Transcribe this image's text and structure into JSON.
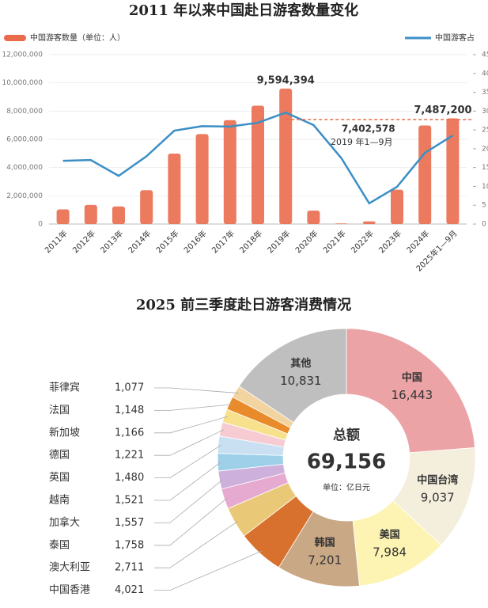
{
  "chart_data": [
    {
      "type": "bar",
      "title": "2011 年以来中国赴日游客数量变化",
      "categories": [
        "2011年",
        "2012年",
        "2013年",
        "2014年",
        "2015年",
        "2016年",
        "2017年",
        "2018年",
        "2019年",
        "2020年",
        "2021年",
        "2022年",
        "2023年",
        "2024年",
        "2025年1—9月"
      ],
      "series": [
        {
          "name": "中国游客数量（单位：人）",
          "color": "#e96b4c",
          "values": [
            1040000,
            1350000,
            1250000,
            2400000,
            4990000,
            6370000,
            7360000,
            8380000,
            9594394,
            950000,
            40000,
            190000,
            2430000,
            6980000,
            7487200
          ],
          "value_labels": [
            null,
            null,
            null,
            null,
            null,
            null,
            null,
            null,
            "9,594,394",
            null,
            null,
            null,
            null,
            null,
            "7,487,200"
          ]
        },
        {
          "name": "中国游客占",
          "type": "line",
          "axis": "y2",
          "color": "#3b8fc6",
          "values": [
            16.8,
            17,
            12.8,
            18,
            24.8,
            26,
            25.9,
            26.9,
            29.6,
            26.3,
            17.5,
            5.5,
            9.9,
            18.9,
            23.5
          ]
        }
      ],
      "ylim": [
        0,
        12000000
      ],
      "yticks": [
        0,
        {
          "value": 2000000,
          "label": "2,000,000"
        },
        {
          "value": 4000000,
          "label": "4,000,000"
        },
        {
          "value": 6000000,
          "label": "6,000,000"
        },
        {
          "value": 8000000,
          "label": "8,000,000"
        },
        {
          "value": 10000000,
          "label": "10,000,000"
        },
        {
          "value": 12000000,
          "label": "12,000,000"
        }
      ],
      "y2lim": [
        0,
        45
      ],
      "y2ticks": [
        0,
        5,
        10,
        15,
        20,
        25,
        30,
        35,
        40,
        45
      ],
      "grid": true,
      "annotations": [
        {
          "text": "7,402,578",
          "value": 7402578
        },
        {
          "text": "2019 年1—9月"
        }
      ]
    },
    {
      "type": "pie",
      "title": "2025 前三季度赴日游客消费情况",
      "categories": [
        "中国",
        "中国台湾",
        "美国",
        "韩国",
        "中国香港",
        "澳大利亚",
        "泰国",
        "加拿大",
        "越南",
        "英国",
        "德国",
        "新加坡",
        "法国",
        "菲律宾",
        "其他"
      ],
      "values": [
        16443,
        9037,
        7984,
        7201,
        4021,
        2711,
        1758,
        1557,
        1521,
        1480,
        1221,
        1166,
        1148,
        1077,
        10831
      ],
      "value_labels": [
        "16,443",
        "9,037",
        "7,984",
        "7,201",
        "4,021",
        "2,711",
        "1,758",
        "1,557",
        "1,521",
        "1,480",
        "1,221",
        "1,166",
        "1,148",
        "1,077",
        "10,831"
      ],
      "colors": [
        "#eba3a6",
        "#f4eedc",
        "#fdf4b4",
        "#c9a886",
        "#d9712e",
        "#e9c977",
        "#e6aad0",
        "#cdb0dc",
        "#9fd0ea",
        "#c8e0f2",
        "#f6ccd2",
        "#f7e18d",
        "#e98b2a",
        "#f2d4a0",
        "#bfbfbf"
      ],
      "center_title": "总额",
      "total": 69156,
      "total_label": "69,156",
      "unit": "单位：亿日元"
    }
  ]
}
